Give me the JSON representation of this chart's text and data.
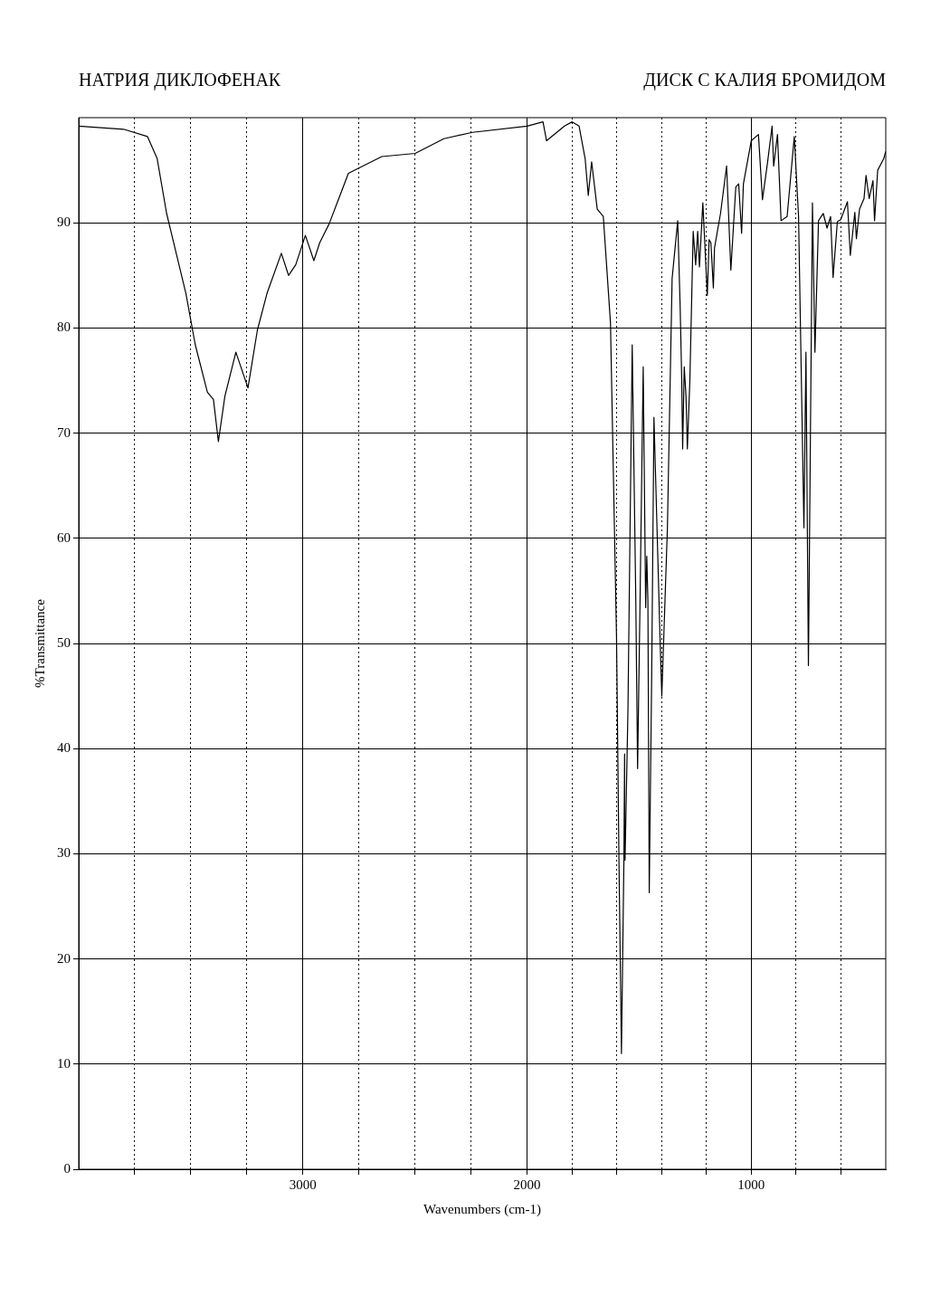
{
  "chart_data": {
    "type": "line",
    "title": "НАТРИЯ ДИКЛОФЕНАК",
    "subtitle": "ДИСК С КАЛИЯ БРОМИДОМ",
    "xlabel": "Wavenumbers (cm-1)",
    "ylabel": "%Transmittance",
    "color": "#000000",
    "x": [
      400,
      409,
      436,
      450,
      457,
      474,
      488,
      497,
      517,
      531,
      538,
      558,
      571,
      601,
      616,
      635,
      646,
      662,
      679,
      700,
      716,
      727,
      745,
      756,
      765,
      789,
      808,
      840,
      867,
      883,
      900,
      907,
      927,
      950,
      968,
      1000,
      1035,
      1043,
      1056,
      1069,
      1091,
      1110,
      1137,
      1164,
      1169,
      1180,
      1188,
      1196,
      1216,
      1231,
      1239,
      1248,
      1259,
      1274,
      1285,
      1291,
      1299,
      1306,
      1310,
      1317,
      1328,
      1353,
      1374,
      1399,
      1407,
      1434,
      1444,
      1455,
      1461,
      1466,
      1471,
      1482,
      1496,
      1507,
      1515,
      1531,
      1550,
      1563,
      1565,
      1568,
      1579,
      1590,
      1601,
      1628,
      1660,
      1687,
      1712,
      1727,
      1741,
      1768,
      1799,
      1833,
      1913,
      1929,
      2000,
      2243,
      2371,
      2499,
      2648,
      2797,
      2840,
      2883,
      2925,
      2951,
      2989,
      3032,
      3064,
      3096,
      3160,
      3203,
      3245,
      3299,
      3348,
      3377,
      3399,
      3426,
      3480,
      3522,
      3608,
      3650,
      3693,
      3800,
      4000
    ],
    "values": [
      96.8,
      96.1,
      95,
      90.2,
      94,
      92.3,
      94.5,
      92.3,
      91.3,
      88.5,
      91,
      86.9,
      92,
      90.3,
      90.1,
      84.8,
      90.6,
      89.5,
      90.9,
      90.2,
      77.7,
      91.9,
      47.9,
      77.7,
      61,
      90.6,
      98.2,
      90.6,
      90.2,
      98.4,
      95.4,
      99.2,
      95.8,
      92.2,
      98.4,
      97.8,
      93.7,
      89,
      93.7,
      93.4,
      85.5,
      95.4,
      90.9,
      87.6,
      83.8,
      88.1,
      88.4,
      83.1,
      91.9,
      85.8,
      89.2,
      86,
      89.2,
      74.9,
      68.5,
      73.5,
      76.3,
      68.5,
      74.9,
      81.9,
      90.2,
      84.7,
      61,
      45,
      50.6,
      71.5,
      47.2,
      26.3,
      54.1,
      58.3,
      53.4,
      76.3,
      54.1,
      38.1,
      54.1,
      78.4,
      43.7,
      29.4,
      39.5,
      29.5,
      11,
      29.1,
      50.6,
      80.5,
      90.6,
      91.3,
      95.8,
      92.6,
      96.1,
      99.2,
      99.6,
      99.2,
      97.8,
      99.6,
      99.2,
      98.6,
      98,
      96.6,
      96.3,
      94.7,
      92.3,
      89.9,
      88.1,
      86.4,
      88.8,
      86,
      85,
      87.1,
      83.3,
      79.8,
      74.3,
      77.7,
      73.5,
      69.2,
      73.2,
      73.9,
      78.4,
      83.3,
      90.9,
      96.1,
      98.2,
      98.9,
      99.2
    ],
    "xlim": [
      4000,
      400
    ],
    "xticks": [
      {
        "value": 3750,
        "label": null
      },
      {
        "value": 3500,
        "label": null
      },
      {
        "value": 3250,
        "label": null
      },
      3000,
      {
        "value": 2750,
        "label": null
      },
      {
        "value": 2500,
        "label": null
      },
      {
        "value": 2250,
        "label": null
      },
      2000,
      {
        "value": 1800,
        "label": null
      },
      {
        "value": 1600,
        "label": null
      },
      {
        "value": 1400,
        "label": null
      },
      {
        "value": 1200,
        "label": null
      },
      1000,
      {
        "value": 800,
        "label": null
      },
      {
        "value": 600,
        "label": null
      }
    ],
    "ylim": [
      0,
      100
    ],
    "yticks": [
      0,
      10,
      20,
      30,
      40,
      50,
      60,
      70,
      80,
      90
    ],
    "grid": true
  }
}
